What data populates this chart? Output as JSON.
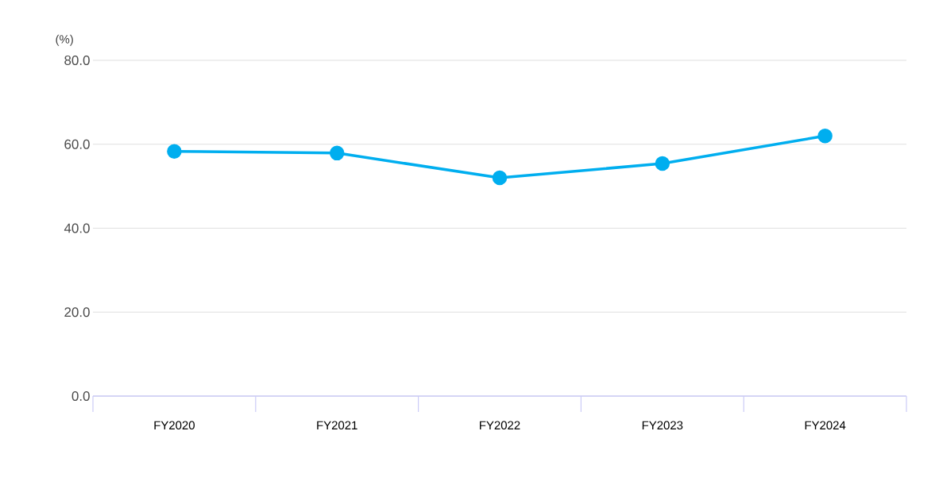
{
  "chart_data": {
    "type": "line",
    "ylabel": "(%)",
    "categories": [
      "FY2020",
      "FY2021",
      "FY2022",
      "FY2023",
      "FY2024"
    ],
    "series": [
      {
        "color": "#00aeef",
        "values": [
          58.3,
          57.9,
          52.0,
          55.4,
          62.0
        ]
      }
    ],
    "ylim": [
      0,
      80
    ],
    "yticks": [
      {
        "value": 0,
        "label": "0.0"
      },
      {
        "value": 20,
        "label": "20.0"
      },
      {
        "value": 40,
        "label": "40.0"
      },
      {
        "value": 60,
        "label": "60.0"
      },
      {
        "value": 80,
        "label": "80.0"
      }
    ],
    "grid": "y",
    "marker": "circle",
    "line_style": "solid"
  }
}
